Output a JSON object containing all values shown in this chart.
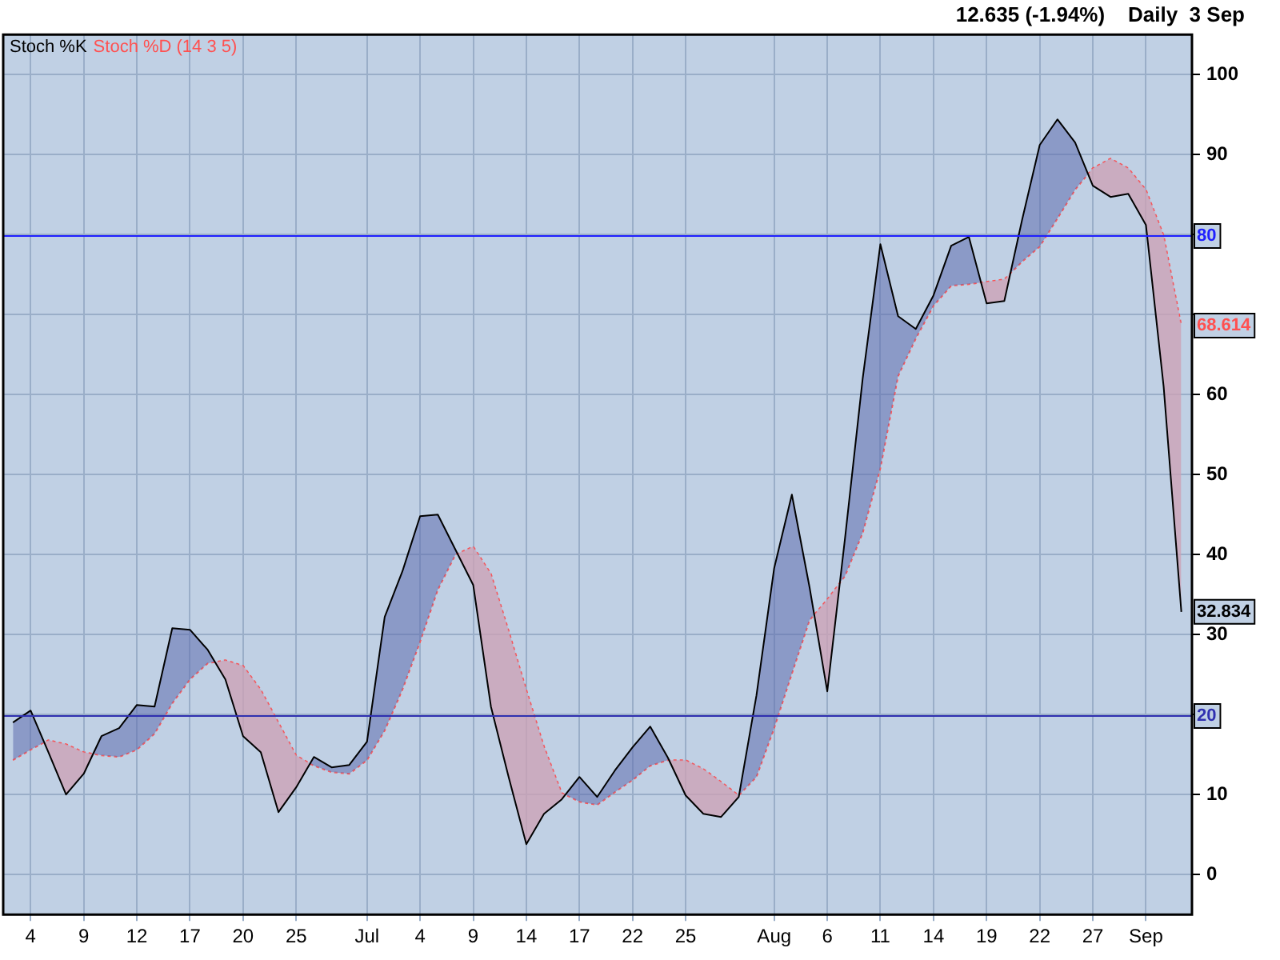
{
  "chart_data": {
    "type": "line",
    "title": "12.635 (-1.94%)    Daily  3 Sep",
    "categories": [
      null,
      "4",
      null,
      null,
      "9",
      null,
      null,
      "12",
      null,
      null,
      "17",
      null,
      null,
      "20",
      null,
      null,
      "25",
      null,
      null,
      null,
      "Jul",
      null,
      null,
      "4",
      null,
      null,
      "9",
      null,
      null,
      "14",
      null,
      null,
      "17",
      null,
      null,
      "22",
      null,
      null,
      "25",
      null,
      null,
      null,
      null,
      "Aug",
      null,
      null,
      "6",
      null,
      null,
      "11",
      null,
      null,
      "14",
      null,
      null,
      "19",
      null,
      null,
      "22",
      null,
      null,
      "27",
      null,
      null,
      "Sep",
      null,
      null
    ],
    "series": [
      {
        "name": "Stoch %K",
        "color": "#000000",
        "line_style": "solid",
        "values": [
          19,
          20.5,
          15.3,
          10,
          12.6,
          17.3,
          18.3,
          21.2,
          21,
          30.8,
          30.6,
          28.1,
          24.4,
          17.3,
          15.3,
          7.8,
          10.9,
          14.7,
          13.4,
          13.7,
          16.6,
          32.2,
          37.9,
          44.8,
          45,
          40.6,
          36.2,
          21,
          12.2,
          3.8,
          7.6,
          9.4,
          12.2,
          9.7,
          13,
          15.9,
          18.5,
          14.6,
          9.9,
          7.6,
          7.2,
          9.7,
          22.4,
          38.3,
          47.5,
          35.9,
          22.9,
          42,
          62,
          78.8,
          69.8,
          68.2,
          72.4,
          78.6,
          79.7,
          71.4,
          71.7,
          81.8,
          91.2,
          94.4,
          91.5,
          86.1,
          84.7,
          85.1,
          81.2,
          61,
          32.834
        ],
        "value_labels": [
          null,
          null,
          null,
          null,
          null,
          null,
          null,
          null,
          null,
          null,
          null,
          null,
          null,
          null,
          null,
          null,
          null,
          null,
          null,
          null,
          null,
          null,
          null,
          null,
          null,
          null,
          null,
          null,
          null,
          null,
          null,
          null,
          null,
          null,
          null,
          null,
          null,
          null,
          null,
          null,
          null,
          null,
          null,
          null,
          null,
          null,
          null,
          null,
          null,
          null,
          null,
          null,
          null,
          null,
          null,
          null,
          null,
          null,
          null,
          null,
          null,
          null,
          null,
          null,
          null,
          null,
          "32.834"
        ]
      },
      {
        "name": "Stoch %D (14 3 5)",
        "color": "#ff5050",
        "line_style": "dotted",
        "values": [
          14.3,
          15.6,
          16.8,
          16.3,
          15.3,
          14.9,
          14.7,
          15.6,
          17.6,
          21.4,
          24.4,
          26.4,
          26.8,
          26.1,
          23.1,
          19,
          14.9,
          13.6,
          12.8,
          12.6,
          14.3,
          18,
          23.1,
          29.1,
          35.6,
          40,
          41,
          37.6,
          30.5,
          23.1,
          16,
          10.2,
          9.1,
          8.7,
          10.3,
          11.8,
          13.6,
          14.3,
          14.3,
          13.2,
          11.6,
          9.9,
          12.2,
          18.3,
          25.1,
          31.8,
          34.4,
          37.3,
          42.7,
          50.8,
          62.3,
          67,
          71.1,
          73.6,
          73.8,
          74.1,
          74.4,
          76.6,
          78.5,
          82,
          85.6,
          88.3,
          89.5,
          88.3,
          85.6,
          79.9,
          68.614
        ],
        "value_labels": [
          null,
          null,
          null,
          null,
          null,
          null,
          null,
          null,
          null,
          null,
          null,
          null,
          null,
          null,
          null,
          null,
          null,
          null,
          null,
          null,
          null,
          null,
          null,
          null,
          null,
          null,
          null,
          null,
          null,
          null,
          null,
          null,
          null,
          null,
          null,
          null,
          null,
          null,
          null,
          null,
          null,
          null,
          null,
          null,
          null,
          null,
          null,
          null,
          null,
          null,
          null,
          null,
          null,
          null,
          null,
          null,
          null,
          null,
          null,
          null,
          null,
          null,
          null,
          null,
          null,
          null,
          "68.614"
        ]
      }
    ],
    "ylim": [
      -5,
      105
    ],
    "yticks": [
      0,
      10,
      {
        "value": 20,
        "label": null
      },
      30,
      40,
      50,
      60,
      {
        "value": 70,
        "label": null
      },
      {
        "value": 80,
        "label": null
      },
      90,
      100
    ],
    "ref_lines": [
      {
        "axis": "y",
        "value": 80,
        "label": "80",
        "color": "#2020ff"
      },
      {
        "axis": "y",
        "value": 20,
        "label": "20",
        "color": "#3030b0"
      }
    ],
    "grid": true,
    "legend": "top left",
    "marker": "none"
  }
}
